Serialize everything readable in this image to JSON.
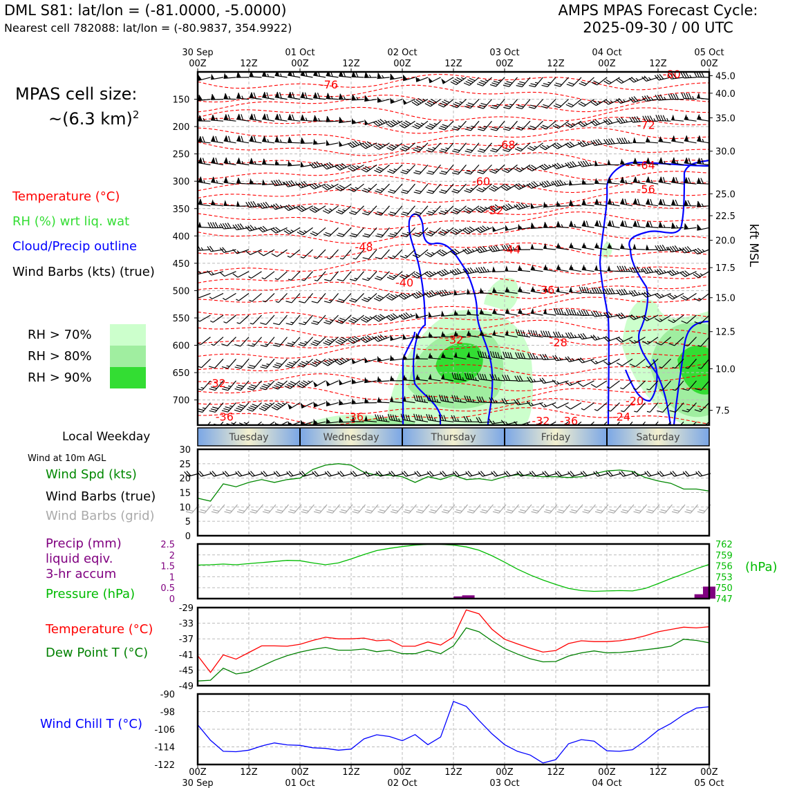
{
  "header": {
    "title": "DML S81: lat/lon = (-81.0000, -5.0000)",
    "subtitle": "Nearest cell 782088: lat/lon = (-80.9837, 354.9922)",
    "cycle_line1": "AMPS MPAS Forecast Cycle:",
    "cycle_line2": "2025-09-30 / 00 UTC"
  },
  "sidebar": {
    "cell_size_label": "MPAS cell size:",
    "cell_size_value": "~(6.3 km)",
    "cell_size_exp": "2",
    "legend_temperature": "Temperature (°C)",
    "legend_rh": "RH (%) wrt liq. wat",
    "legend_cloud": "Cloud/Precip outline",
    "legend_wind": "Wind Barbs (kts) (true)",
    "rh_70": "RH > 70%",
    "rh_80": "RH > 80%",
    "rh_90": "RH > 90%",
    "local_weekday": "Local Weekday",
    "wind_10m": "Wind at 10m AGL",
    "wind_spd": "Wind Spd (kts)",
    "wind_barbs_true": "Wind Barbs (true)",
    "wind_barbs_grid": "Wind Barbs (grid)",
    "precip_1": "Precip (mm)",
    "precip_2": "liquid eqiv.",
    "precip_3": "3-hr accum",
    "pressure": "Pressure (hPa)",
    "temp": "Temperature (°C)",
    "dewpoint": "Dew Point T (°C)",
    "windchill": "Wind Chill T (°C)"
  },
  "colors": {
    "temperature": "#ff0000",
    "rh_label": "#33dd33",
    "cloud": "#0000ff",
    "wind": "#000000",
    "wind_grid": "#aaaaaa",
    "speed": "#008800",
    "precip": "#800080",
    "pressure": "#00bb00",
    "dewpoint": "#008000",
    "windchill": "#0000ff",
    "rh70": "#ccffcc",
    "rh80": "#a0eea0",
    "rh90": "#33dd33"
  },
  "chart_data": [
    {
      "type": "contour",
      "name": "Vertical cross-section time-height",
      "x_top_labels": [
        "30 Sep\n00Z",
        "12Z",
        "01 Oct\n00Z",
        "12Z",
        "02 Oct\n00Z",
        "12Z",
        "03 Oct\n00Z",
        "12Z",
        "04 Oct\n00Z",
        "12Z",
        "05 Oct\n00Z"
      ],
      "x_hours": [
        0,
        12,
        24,
        36,
        48,
        60,
        72,
        84,
        96,
        108,
        120
      ],
      "y_pressure_ticks": [
        150,
        200,
        250,
        300,
        350,
        400,
        450,
        500,
        550,
        600,
        650,
        700
      ],
      "y_right_label": "kft MSL",
      "y_right_ticks": [
        45.0,
        40.0,
        35.0,
        30.0,
        25.0,
        22.5,
        20.0,
        17.5,
        15.0,
        12.5,
        10.0,
        7.5
      ],
      "y_right_pressures": [
        107,
        139,
        184,
        245,
        323,
        363,
        408,
        458,
        513,
        575,
        643,
        719
      ],
      "ylim": [
        100,
        746
      ],
      "temperature_labels": [
        {
          "text": "-76",
          "hour": 30.8,
          "p": 123
        },
        {
          "text": "-80",
          "hour": 111.2,
          "p": 104
        },
        {
          "text": "-72",
          "hour": 105.2,
          "p": 197
        },
        {
          "text": "-68",
          "hour": 72.4,
          "p": 233
        },
        {
          "text": "-64",
          "hour": 105.2,
          "p": 270
        },
        {
          "text": "-60",
          "hour": 66.5,
          "p": 300
        },
        {
          "text": "-56",
          "hour": 105.2,
          "p": 314
        },
        {
          "text": "-52",
          "hour": 69.6,
          "p": 353
        },
        {
          "text": "-48",
          "hour": 39.0,
          "p": 420
        },
        {
          "text": "-44",
          "hour": 73.6,
          "p": 424
        },
        {
          "text": "-40",
          "hour": 48.5,
          "p": 485
        },
        {
          "text": "-36",
          "hour": 81.6,
          "p": 498
        },
        {
          "text": "-32",
          "hour": 60.2,
          "p": 589
        },
        {
          "text": "-28",
          "hour": 84.6,
          "p": 594
        },
        {
          "text": "-32",
          "hour": 4.5,
          "p": 669
        },
        {
          "text": "-36",
          "hour": 6.3,
          "p": 730
        },
        {
          "text": "-36",
          "hour": 36.8,
          "p": 730
        },
        {
          "text": "-32",
          "hour": 80.5,
          "p": 738
        },
        {
          "text": "-36",
          "hour": 87.1,
          "p": 738
        },
        {
          "text": "-24",
          "hour": 99.4,
          "p": 730
        },
        {
          "text": "-20",
          "hour": 102.5,
          "p": 701
        }
      ]
    },
    {
      "type": "bar",
      "name": "Local weekday band",
      "categories": [
        "Tuesday",
        "Wednesday",
        "Thursday",
        "Friday",
        "Saturday"
      ]
    },
    {
      "type": "line",
      "name": "Wind speed at 10m",
      "x_hours": [
        0,
        3,
        6,
        9,
        12,
        15,
        18,
        21,
        24,
        27,
        30,
        33,
        36,
        39,
        42,
        45,
        48,
        51,
        54,
        57,
        60,
        63,
        66,
        69,
        72,
        75,
        78,
        81,
        84,
        87,
        90,
        93,
        96,
        99,
        102,
        105,
        108,
        111,
        114,
        117,
        120
      ],
      "values": [
        13,
        12,
        18,
        17,
        18.5,
        19.5,
        18.5,
        19.5,
        20,
        23,
        24.5,
        25,
        24.5,
        22,
        21,
        21,
        20.5,
        18.5,
        20.5,
        19.5,
        21,
        19.5,
        19.8,
        19.2,
        20.5,
        21.2,
        20.8,
        20.5,
        20.5,
        20.2,
        20.5,
        21.5,
        22.5,
        22.8,
        22.3,
        20.2,
        19,
        18.2,
        16.2,
        16.2,
        15.5
      ],
      "ylim": [
        0,
        30
      ],
      "yticks": [
        0,
        5,
        10,
        15,
        20,
        25,
        30
      ]
    },
    {
      "type": "bar",
      "name": "Precip 3-hr accum (mm)",
      "x_hours": [
        61.5,
        63.5,
        118,
        120
      ],
      "values": [
        0.1,
        0.15,
        0.2,
        0.55
      ],
      "ylim": [
        0,
        2.5
      ],
      "yticks": [
        0,
        0.5,
        1.0,
        1.5,
        2.0,
        2.5
      ]
    },
    {
      "type": "line",
      "name": "Pressure (hPa)",
      "x_hours": [
        0,
        3,
        6,
        9,
        12,
        15,
        18,
        21,
        24,
        27,
        30,
        33,
        36,
        39,
        42,
        45,
        48,
        51,
        54,
        57,
        60,
        63,
        66,
        69,
        72,
        75,
        78,
        81,
        84,
        87,
        90,
        93,
        96,
        99,
        102,
        105,
        108,
        111,
        114,
        117,
        120
      ],
      "values": [
        756.2,
        756.3,
        756.5,
        756.3,
        756.6,
        756.9,
        757.2,
        757.5,
        757.4,
        756.8,
        756.3,
        756.8,
        757.9,
        759.1,
        760.2,
        760.8,
        761.3,
        761.7,
        761.9,
        761.9,
        761.7,
        761.2,
        760.3,
        758.8,
        757,
        755.1,
        753.5,
        752.1,
        750.9,
        749.8,
        749.2,
        749,
        749.1,
        749.2,
        749.1,
        749.8,
        751.1,
        752.5,
        753.8,
        755.2,
        756.4
      ],
      "ylim": [
        747,
        762
      ],
      "yticks": [
        747,
        750,
        753,
        756,
        759,
        762
      ]
    },
    {
      "type": "line",
      "name": "Temperature and dew point (°C)",
      "x_hours": [
        0,
        3,
        6,
        9,
        12,
        15,
        18,
        21,
        24,
        27,
        30,
        33,
        36,
        39,
        42,
        45,
        48,
        51,
        54,
        57,
        60,
        63,
        66,
        69,
        72,
        75,
        78,
        81,
        84,
        87,
        90,
        93,
        96,
        99,
        102,
        105,
        108,
        111,
        114,
        117,
        120
      ],
      "series": [
        {
          "name": "Temperature",
          "values": [
            -41.3,
            -45.6,
            -41.1,
            -42.2,
            -40.5,
            -38.8,
            -38.8,
            -38.9,
            -38.4,
            -37.4,
            -36.6,
            -37,
            -37,
            -36.8,
            -37.5,
            -37.3,
            -38.9,
            -38.9,
            -37.8,
            -38.6,
            -36.5,
            -29.6,
            -30.6,
            -34.5,
            -37.1,
            -38.3,
            -39.4,
            -40.4,
            -40,
            -38.2,
            -37.5,
            -37.7,
            -37.7,
            -37.5,
            -37,
            -36.2,
            -35.2,
            -34.6,
            -34,
            -34.2,
            -33.9
          ]
        },
        {
          "name": "Dew Point",
          "values": [
            -47.8,
            -47.6,
            -44.5,
            -46,
            -45.5,
            -44,
            -42.5,
            -41.3,
            -40.4,
            -39.7,
            -39.2,
            -39.9,
            -39.9,
            -39.6,
            -40.3,
            -39.9,
            -40.8,
            -40.8,
            -39.9,
            -40.8,
            -38.8,
            -34.2,
            -35.2,
            -37.5,
            -39.5,
            -40.9,
            -42.1,
            -42.9,
            -42.8,
            -41.4,
            -40.6,
            -40.1,
            -40.6,
            -40.5,
            -40.2,
            -39.8,
            -39.4,
            -38.9,
            -37.1,
            -37.4,
            -38
          ]
        }
      ],
      "ylim": [
        -49,
        -29
      ],
      "yticks": [
        -49,
        -45,
        -41,
        -37,
        -33,
        -29
      ]
    },
    {
      "type": "line",
      "name": "Wind chill (°C)",
      "x_hours": [
        0,
        3,
        6,
        9,
        12,
        15,
        18,
        21,
        24,
        27,
        30,
        33,
        36,
        39,
        42,
        45,
        48,
        51,
        54,
        57,
        60,
        63,
        66,
        69,
        72,
        75,
        78,
        81,
        84,
        87,
        90,
        93,
        96,
        99,
        102,
        105,
        108,
        111,
        114,
        117,
        120
      ],
      "values": [
        -104,
        -111,
        -116,
        -116.2,
        -115.5,
        -113.6,
        -112.2,
        -113.1,
        -113.3,
        -114.4,
        -114.7,
        -115.5,
        -115,
        -110.4,
        -108.5,
        -109.3,
        -111.2,
        -108.4,
        -113,
        -109.5,
        -93.4,
        -95.6,
        -102,
        -108,
        -113,
        -116,
        -117.7,
        -121.3,
        -119.8,
        -112.6,
        -110.7,
        -111.4,
        -115.8,
        -116,
        -115.3,
        -111.2,
        -106.5,
        -103.4,
        -99.4,
        -96.4,
        -95.8
      ],
      "ylim": [
        -122,
        -90
      ],
      "yticks": [
        -122,
        -114,
        -106,
        -98,
        -90
      ]
    }
  ]
}
